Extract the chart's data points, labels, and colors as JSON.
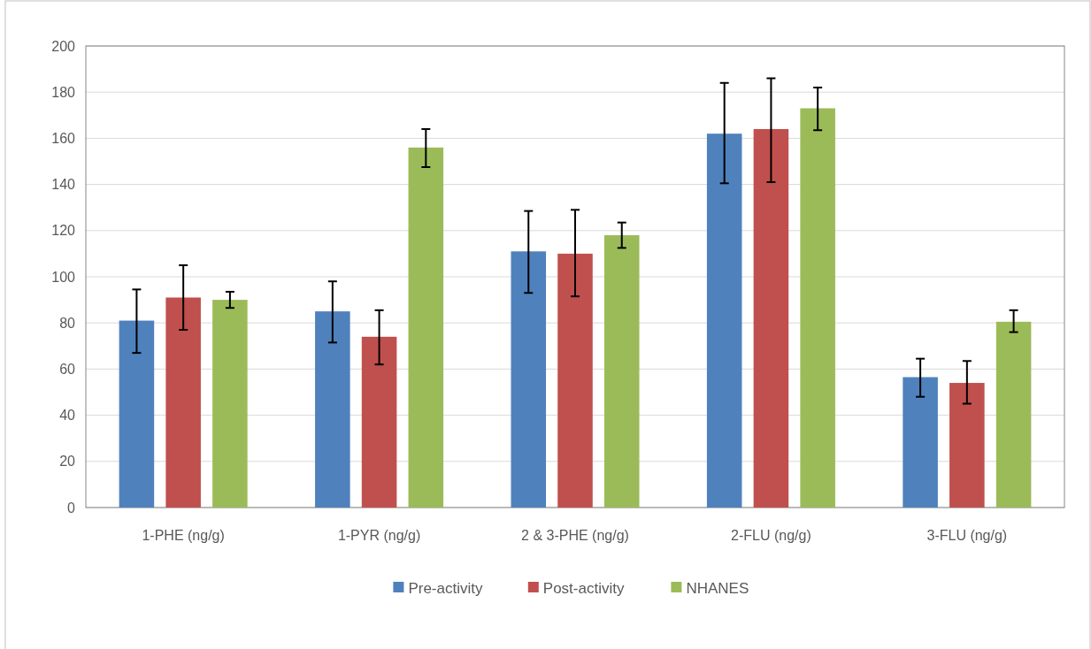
{
  "chart_data": {
    "type": "bar",
    "categories": [
      "1-PHE (ng/g)",
      "1-PYR (ng/g)",
      "2 & 3-PHE (ng/g)",
      "2-FLU (ng/g)",
      "3-FLU (ng/g)"
    ],
    "series": [
      {
        "name": "Pre-activity",
        "color": "#4f81bd",
        "values": [
          81,
          85,
          111,
          162,
          56.5
        ],
        "errors": [
          [
            67,
            94.5
          ],
          [
            71.5,
            98
          ],
          [
            93,
            128.5
          ],
          [
            140.5,
            184
          ],
          [
            48,
            64.5
          ]
        ]
      },
      {
        "name": "Post-activity",
        "color": "#c0504d",
        "values": [
          91,
          74,
          110,
          164,
          54
        ],
        "errors": [
          [
            77,
            105
          ],
          [
            62,
            85.5
          ],
          [
            91.5,
            129
          ],
          [
            141,
            186
          ],
          [
            45,
            63.5
          ]
        ]
      },
      {
        "name": "NHANES",
        "color": "#9bbb59",
        "values": [
          90,
          156,
          118,
          173,
          80.5
        ],
        "errors": [
          [
            86.5,
            93.5
          ],
          [
            147.5,
            164
          ],
          [
            112.5,
            123.5
          ],
          [
            163.5,
            182
          ],
          [
            76,
            85.5
          ]
        ]
      }
    ],
    "ylim": [
      0,
      200
    ],
    "yticks": [
      0,
      20,
      40,
      60,
      80,
      100,
      120,
      140,
      160,
      180,
      200
    ],
    "grid": "y",
    "legend": "bottom"
  }
}
